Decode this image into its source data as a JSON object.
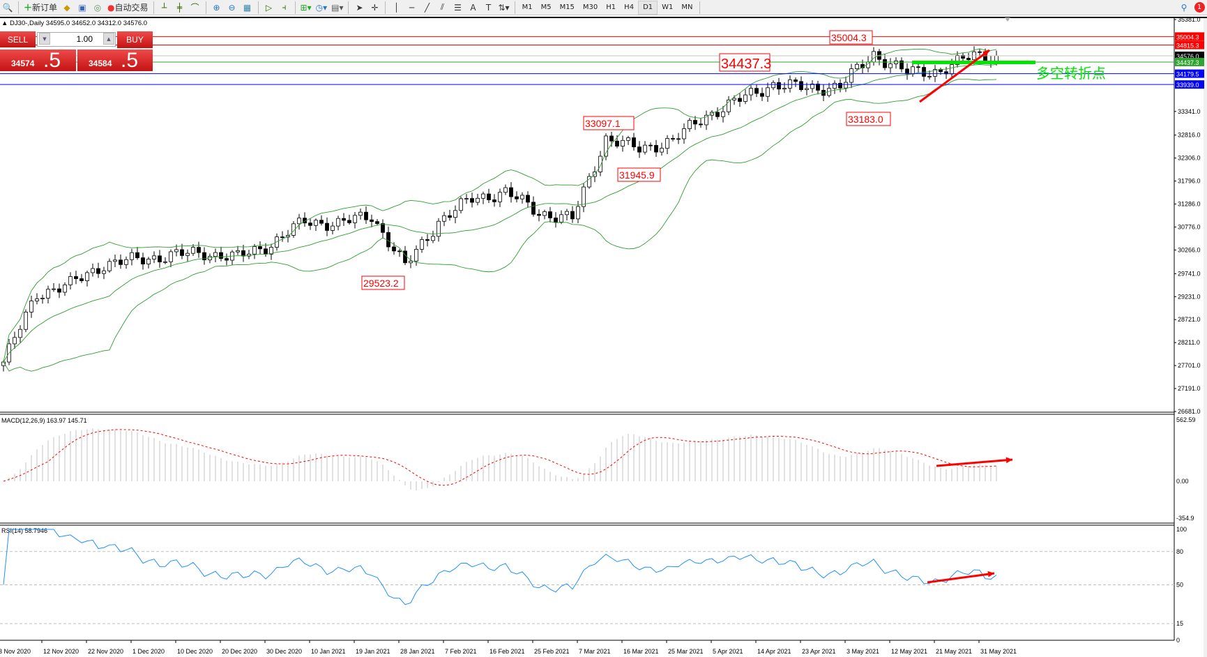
{
  "toolbar": {
    "new_order": "新订单",
    "auto_trading": "自动交易",
    "timeframes": [
      "M1",
      "M5",
      "M15",
      "M30",
      "H1",
      "H4",
      "D1",
      "W1",
      "MN"
    ],
    "active_timeframe": "D1",
    "notification_count": "1"
  },
  "chart_header": "DJ30-,Daily  34595.0 34652.0 34312.0 34576.0",
  "trade_panel": {
    "sell_label": "SELL",
    "buy_label": "BUY",
    "lot": "1.00",
    "sell_price_main": "34574",
    "sell_price_big": ".5",
    "buy_price_main": "34584",
    "buy_price_big": ".5"
  },
  "colors": {
    "bull": "#ffffff",
    "bear": "#000000",
    "bands": "#2e9e2e",
    "macd_hist": "#c0c0c0",
    "macd_signal": "#ff0000",
    "rsi": "#1e90ff",
    "annotation": "#ff0000",
    "pivot": "#00e600"
  },
  "chart_data": {
    "type": "candlestick",
    "symbol": "DJ30-",
    "period": "Daily",
    "weekly_closes": [
      27780,
      29300,
      29500,
      29950,
      30050,
      30150,
      30200,
      30100,
      30400,
      30900,
      30850,
      31030,
      29900,
      30900,
      31400,
      31550,
      31100,
      30950,
      32750,
      32500,
      32700,
      33250,
      33600,
      33950,
      33850,
      33900,
      34620,
      34200,
      34250,
      34590,
      34576
    ],
    "price_ticks": [
      "35381.0",
      "34361.0",
      "33851.0",
      "33341.0",
      "32816.0",
      "32306.0",
      "31796.0",
      "31286.0",
      "30776.0",
      "30266.0",
      "29741.0",
      "29231.0",
      "28721.0",
      "28211.0",
      "27701.0",
      "27191.0",
      "26681.0"
    ],
    "price_range": [
      26681,
      35381
    ],
    "levels": [
      {
        "price": "35004.3",
        "value": 35004.3,
        "color": "#ff0000"
      },
      {
        "price": "34815.3",
        "value": 34815.3,
        "color": "#ff0000"
      },
      {
        "price": "34576.0",
        "value": 34576.0,
        "color": "#000000"
      },
      {
        "price": "34437.3",
        "value": 34437.3,
        "color": "#2ea52e"
      },
      {
        "price": "34179.5",
        "value": 34179.5,
        "color": "#0000ff"
      },
      {
        "price": "33939.0",
        "value": 33939.0,
        "color": "#0000ff"
      }
    ],
    "annotations": [
      "35004.3",
      "34437.3",
      "33097.1",
      "31945.9",
      "29523.2",
      "33183.0"
    ],
    "pivot_text": "多空转折点",
    "date_labels": [
      "3 Nov 2020",
      "12 Nov 2020",
      "22 Nov 2020",
      "1 Dec 2020",
      "10 Dec 2020",
      "20 Dec 2020",
      "30 Dec 2020",
      "10 Jan 2021",
      "19 Jan 2021",
      "28 Jan 2021",
      "7 Feb 2021",
      "16 Feb 2021",
      "25 Feb 2021",
      "7 Mar 2021",
      "16 Mar 2021",
      "25 Mar 2021",
      "5 Apr 2021",
      "14 Apr 2021",
      "23 Apr 2021",
      "3 May 2021",
      "12 May 2021",
      "21 May 2021",
      "31 May 2021"
    ],
    "macd": {
      "label": "MACD(12,26,9) 163.97 145.71",
      "ticks": [
        "562.59",
        "0.00",
        "-354.9"
      ],
      "range": [
        -354.9,
        562.59
      ]
    },
    "rsi": {
      "label": "RSI(14) 58.7946",
      "ticks": [
        "100",
        "80",
        "50",
        "15",
        "0"
      ],
      "levels": [
        80,
        50,
        15
      ]
    }
  }
}
